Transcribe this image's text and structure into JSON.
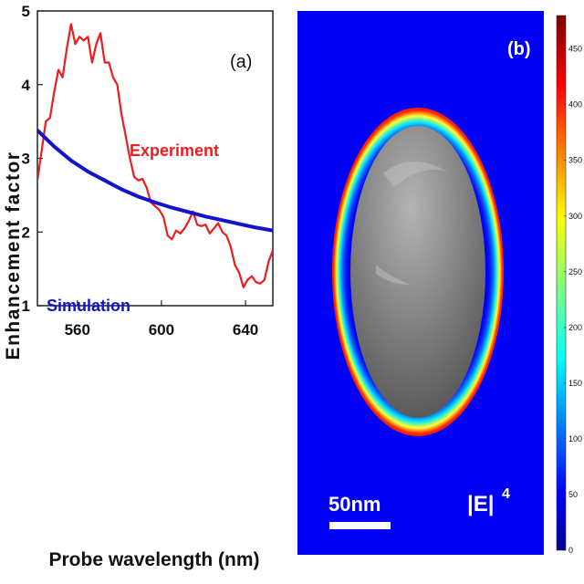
{
  "chart_data": [
    {
      "type": "line",
      "panel_label": "(a)",
      "xlabel": "Probe wavelength (nm)",
      "ylabel": "Enhancement factor",
      "xlim": [
        541,
        653
      ],
      "ylim": [
        1,
        5
      ],
      "xticks": [
        560,
        600,
        640
      ],
      "yticks": [
        1,
        2,
        3,
        4,
        5
      ],
      "series": [
        {
          "name": "Experiment",
          "color": "#ee1c1c",
          "x": [
            541,
            543,
            545,
            547,
            549,
            551,
            553,
            555,
            557,
            559,
            561,
            563,
            565,
            567,
            569,
            571,
            573,
            575,
            577,
            579,
            581,
            583,
            585,
            587,
            589,
            591,
            593,
            595,
            597,
            599,
            601,
            603,
            605,
            607,
            609,
            611,
            613,
            615,
            617,
            619,
            621,
            623,
            625,
            627,
            629,
            631,
            633,
            635,
            637,
            639,
            641,
            643,
            645,
            647,
            649,
            651,
            653
          ],
          "y": [
            2.7,
            3.1,
            3.5,
            3.55,
            3.9,
            4.2,
            4.1,
            4.5,
            4.82,
            4.55,
            4.65,
            4.6,
            4.65,
            4.3,
            4.55,
            4.7,
            4.3,
            4.3,
            4.1,
            4.0,
            3.6,
            3.3,
            3.0,
            2.75,
            2.7,
            2.72,
            2.6,
            2.4,
            2.35,
            2.3,
            2.2,
            1.95,
            1.9,
            2.02,
            1.98,
            2.05,
            2.15,
            2.28,
            2.1,
            2.08,
            2.1,
            1.98,
            2.05,
            2.12,
            2.0,
            1.95,
            1.8,
            1.55,
            1.45,
            1.25,
            1.35,
            1.4,
            1.32,
            1.3,
            1.35,
            1.6,
            1.75
          ]
        },
        {
          "name": "Simulation",
          "color": "#1212d0",
          "x": [
            541,
            549,
            557,
            565,
            573,
            581,
            589,
            597,
            605,
            613,
            621,
            629,
            637,
            645,
            653
          ],
          "y": [
            3.38,
            3.16,
            2.97,
            2.82,
            2.7,
            2.58,
            2.48,
            2.4,
            2.33,
            2.27,
            2.21,
            2.16,
            2.11,
            2.06,
            2.02
          ]
        }
      ],
      "annotations": [
        "Experiment",
        "Simulation"
      ]
    },
    {
      "type": "heatmap",
      "panel_label": "(b)",
      "field_label": "|E|",
      "field_exponent": "4",
      "scale_bar_label": "50nm",
      "colorbar_ticks": [
        0,
        50,
        100,
        150,
        200,
        250,
        300,
        350,
        400,
        450
      ],
      "colorbar_range": [
        0,
        480
      ],
      "colormap": [
        "#00008f",
        "#0000ff",
        "#00ffff",
        "#ffff00",
        "#ff0000",
        "#800000"
      ]
    }
  ]
}
